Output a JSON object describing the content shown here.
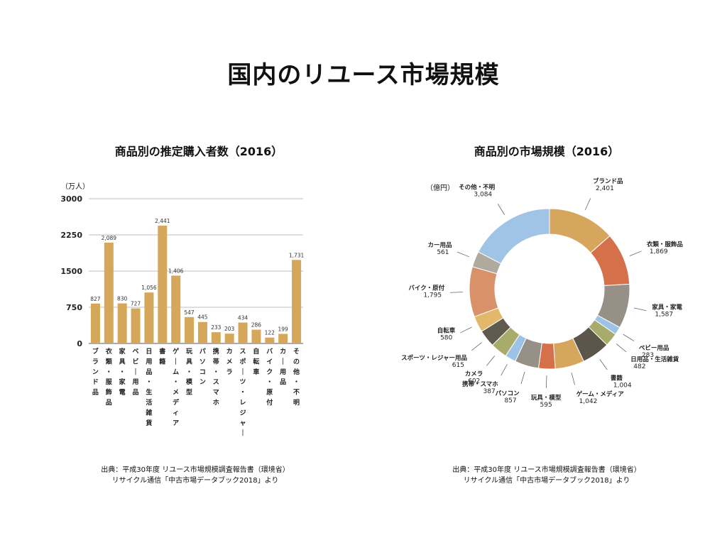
{
  "title": "国内のリユース市場規模",
  "chart_data": [
    {
      "type": "bar",
      "title": "商品別の推定購入者数（2016）",
      "ylabel": "（万人）",
      "ylim": [
        0,
        3000
      ],
      "yticks": [
        "0",
        "750",
        "1500",
        "2250",
        "3000"
      ],
      "categories": [
        "ブランド品",
        "衣類・服飾品",
        "家具・家電",
        "ベビー用品",
        "日用品・生活雑貨",
        "書籍",
        "ゲーム・メディア",
        "玩具・模型",
        "パソコン",
        "携帯・スマホ",
        "カメラ",
        "スポーツ・レジャー",
        "自転車",
        "バイク・原付",
        "カー用品",
        "その他・不明"
      ],
      "values": [
        827,
        2089,
        830,
        727,
        1056,
        2441,
        1406,
        547,
        445,
        233,
        203,
        434,
        286,
        122,
        199,
        1731
      ],
      "value_labels": [
        "827",
        "2,089",
        "830",
        "727",
        "1,056",
        "2,441",
        "1,406",
        "547",
        "445",
        "233",
        "203",
        "434",
        "286",
        "122",
        "199",
        "1,731"
      ],
      "bar_color": "#d4a75a",
      "grid": true
    },
    {
      "type": "pie",
      "title": "商品別の市場規模（2016）",
      "unit": "（億円）",
      "slices": [
        {
          "label": "ブランド品",
          "value": 2401,
          "value_label": "2,401",
          "color": "#d6a65c"
        },
        {
          "label": "衣類・服飾品",
          "value": 1869,
          "value_label": "1,869",
          "color": "#d4704a"
        },
        {
          "label": "家具・家電",
          "value": 1587,
          "value_label": "1,587",
          "color": "#969087"
        },
        {
          "label": "ベビー用品",
          "value": 283,
          "value_label": "283",
          "color": "#9cc3e6"
        },
        {
          "label": "日用品・生活雑貨",
          "value": 482,
          "value_label": "482",
          "color": "#a8ac6a"
        },
        {
          "label": "書籍",
          "value": 1004,
          "value_label": "1,004",
          "color": "#5b5649"
        },
        {
          "label": "ゲーム・メディア",
          "value": 1042,
          "value_label": "1,042",
          "color": "#d6a65c"
        },
        {
          "label": "玩具・模型",
          "value": 595,
          "value_label": "595",
          "color": "#d4704a"
        },
        {
          "label": "パソコン",
          "value": 857,
          "value_label": "857",
          "color": "#969087"
        },
        {
          "label": "携帯・スマホ",
          "value": 387,
          "value_label": "387",
          "color": "#9cc3e6"
        },
        {
          "label": "カメラ",
          "value": 602,
          "value_label": "602",
          "color": "#a8ac6a"
        },
        {
          "label": "スポーツ・レジャー用品",
          "value": 615,
          "value_label": "615",
          "color": "#5e5a4e"
        },
        {
          "label": "自転車",
          "value": 580,
          "value_label": "580",
          "color": "#e2b86a"
        },
        {
          "label": "バイク・原付",
          "value": 1795,
          "value_label": "1,795",
          "color": "#d9916a"
        },
        {
          "label": "カー用品",
          "value": 561,
          "value_label": "561",
          "color": "#b0a99e"
        },
        {
          "label": "その他・不明",
          "value": 3084,
          "value_label": "3,084",
          "color": "#a0c4e6"
        }
      ]
    }
  ],
  "sources": [
    {
      "line1": "出典：平成30年度 リユース市場規模調査報告書（環境省）",
      "line2": "リサイクル通信「中古市場データブック2018」より"
    },
    {
      "line1": "出典：平成30年度 リユース市場規模調査報告書（環境省）",
      "line2": "リサイクル通信「中古市場データブック2018」より"
    }
  ]
}
